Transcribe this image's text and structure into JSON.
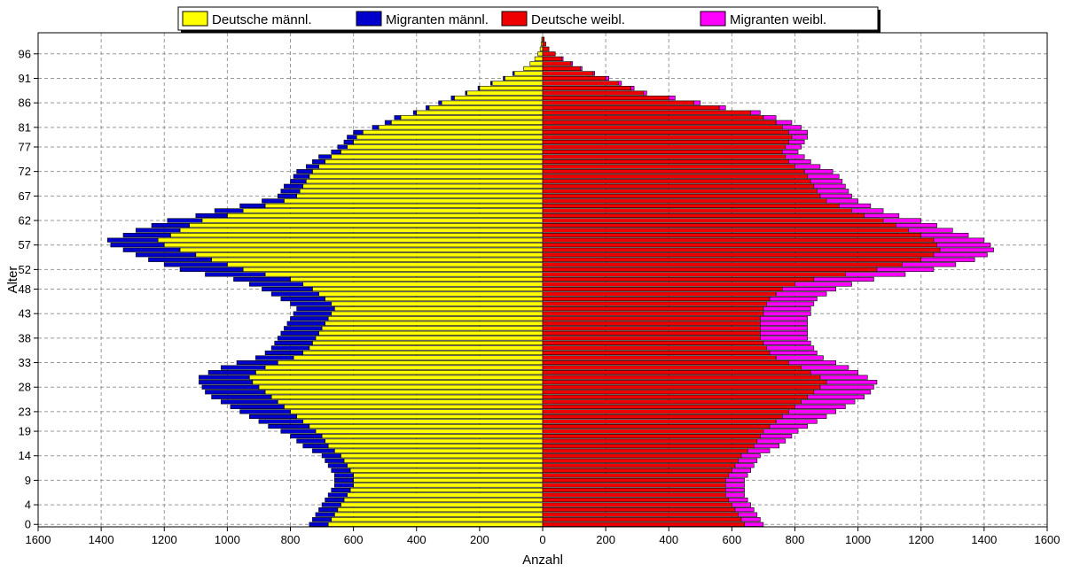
{
  "chart_data": {
    "type": "bar",
    "orientation": "horizontal-pyramid",
    "xlabel": "Anzahl",
    "ylabel": "Alter",
    "xlim": [
      -1600,
      1600
    ],
    "ylim": [
      0,
      99
    ],
    "x_ticks": [
      -1600,
      -1400,
      -1200,
      -1000,
      -800,
      -600,
      -400,
      -200,
      0,
      200,
      400,
      600,
      800,
      1000,
      1200,
      1400,
      1600
    ],
    "x_tick_labels": [
      "1600",
      "1400",
      "1200",
      "1000",
      "800",
      "600",
      "400",
      "200",
      "0",
      "200",
      "400",
      "600",
      "800",
      "1000",
      "1200",
      "1400",
      "1600"
    ],
    "y_ticks": [
      0,
      4,
      9,
      14,
      19,
      23,
      28,
      33,
      38,
      43,
      48,
      52,
      57,
      62,
      67,
      72,
      77,
      81,
      86,
      91,
      96
    ],
    "y_tick_labels": [
      "0",
      "4",
      "9",
      "14",
      "19",
      "23",
      "28",
      "33",
      "38",
      "43",
      "48",
      "52",
      "57",
      "62",
      "67",
      "72",
      "77",
      "81",
      "86",
      "91",
      "96"
    ],
    "grid": true,
    "legend_position": "top",
    "colors": {
      "deutsche_m": "#ffff00",
      "migranten_m": "#0000cc",
      "deutsche_w": "#ee0000",
      "migranten_w": "#ff00ff",
      "outline": "#000000",
      "grid": "#999999"
    },
    "series": [
      {
        "key": "deutsche_m",
        "name": "Deutsche männl.",
        "stack": "left"
      },
      {
        "key": "migranten_m",
        "name": "Migranten männl.",
        "stack": "left"
      },
      {
        "key": "deutsche_w",
        "name": "Deutsche weibl.",
        "stack": "right"
      },
      {
        "key": "migranten_w",
        "name": "Migranten weibl.",
        "stack": "right"
      }
    ],
    "ages": [
      0,
      1,
      2,
      3,
      4,
      5,
      6,
      7,
      8,
      9,
      10,
      11,
      12,
      13,
      14,
      15,
      16,
      17,
      18,
      19,
      20,
      21,
      22,
      23,
      24,
      25,
      26,
      27,
      28,
      29,
      30,
      31,
      32,
      33,
      34,
      35,
      36,
      37,
      38,
      39,
      40,
      41,
      42,
      43,
      44,
      45,
      46,
      47,
      48,
      49,
      50,
      51,
      52,
      53,
      54,
      55,
      56,
      57,
      58,
      59,
      60,
      61,
      62,
      63,
      64,
      65,
      66,
      67,
      68,
      69,
      70,
      71,
      72,
      73,
      74,
      75,
      76,
      77,
      78,
      79,
      80,
      81,
      82,
      83,
      84,
      85,
      86,
      87,
      88,
      89,
      90,
      91,
      92,
      93,
      94,
      95,
      96,
      97,
      98,
      99
    ],
    "deutsche_m": [
      680,
      670,
      660,
      650,
      640,
      630,
      620,
      610,
      600,
      600,
      600,
      610,
      620,
      630,
      640,
      660,
      680,
      690,
      700,
      720,
      740,
      760,
      780,
      800,
      820,
      840,
      860,
      880,
      900,
      920,
      930,
      910,
      880,
      840,
      790,
      760,
      740,
      730,
      720,
      710,
      700,
      690,
      680,
      670,
      660,
      670,
      690,
      710,
      730,
      760,
      800,
      880,
      950,
      1000,
      1050,
      1100,
      1150,
      1200,
      1220,
      1180,
      1150,
      1120,
      1080,
      1000,
      950,
      880,
      820,
      780,
      770,
      760,
      750,
      740,
      730,
      710,
      690,
      670,
      640,
      620,
      600,
      590,
      570,
      520,
      480,
      450,
      400,
      360,
      320,
      280,
      240,
      200,
      160,
      120,
      90,
      60,
      40,
      25,
      15,
      8,
      5,
      3
    ],
    "migranten_m": [
      60,
      60,
      60,
      60,
      60,
      60,
      60,
      60,
      60,
      60,
      60,
      60,
      60,
      60,
      60,
      70,
      80,
      90,
      100,
      110,
      130,
      140,
      150,
      160,
      170,
      180,
      190,
      190,
      180,
      170,
      160,
      150,
      140,
      130,
      120,
      120,
      120,
      120,
      120,
      120,
      120,
      120,
      120,
      120,
      120,
      130,
      140,
      150,
      160,
      170,
      180,
      190,
      200,
      200,
      200,
      190,
      180,
      170,
      160,
      150,
      140,
      120,
      110,
      100,
      90,
      80,
      70,
      60,
      60,
      60,
      50,
      50,
      50,
      40,
      40,
      40,
      30,
      30,
      30,
      30,
      30,
      20,
      20,
      20,
      10,
      10,
      10,
      10,
      5,
      5,
      5,
      5,
      5,
      0,
      0,
      0,
      0,
      0,
      0,
      0
    ],
    "deutsche_w": [
      640,
      630,
      620,
      610,
      600,
      590,
      580,
      580,
      580,
      580,
      590,
      600,
      610,
      620,
      630,
      650,
      670,
      680,
      690,
      700,
      720,
      740,
      760,
      780,
      800,
      820,
      840,
      860,
      880,
      900,
      880,
      850,
      820,
      780,
      740,
      720,
      710,
      700,
      690,
      690,
      690,
      690,
      690,
      700,
      700,
      710,
      720,
      740,
      760,
      800,
      860,
      960,
      1060,
      1140,
      1200,
      1240,
      1260,
      1250,
      1240,
      1200,
      1160,
      1120,
      1080,
      1020,
      980,
      940,
      900,
      880,
      870,
      860,
      850,
      840,
      830,
      800,
      780,
      770,
      760,
      770,
      780,
      790,
      780,
      760,
      740,
      700,
      660,
      560,
      480,
      400,
      320,
      280,
      240,
      200,
      160,
      120,
      90,
      60,
      40,
      20,
      10,
      5
    ],
    "migranten_w": [
      60,
      60,
      60,
      60,
      60,
      60,
      60,
      60,
      60,
      60,
      60,
      60,
      60,
      60,
      60,
      70,
      80,
      90,
      100,
      110,
      120,
      130,
      140,
      150,
      160,
      170,
      180,
      180,
      170,
      160,
      150,
      150,
      150,
      150,
      150,
      150,
      150,
      150,
      150,
      150,
      150,
      150,
      150,
      150,
      150,
      150,
      150,
      160,
      170,
      180,
      190,
      190,
      180,
      170,
      170,
      170,
      170,
      170,
      160,
      150,
      140,
      130,
      120,
      110,
      100,
      100,
      100,
      100,
      100,
      100,
      100,
      100,
      90,
      80,
      70,
      60,
      50,
      50,
      50,
      50,
      60,
      60,
      50,
      40,
      30,
      20,
      20,
      20,
      10,
      10,
      10,
      10,
      5,
      5,
      5,
      5,
      0,
      0,
      0,
      0
    ]
  }
}
